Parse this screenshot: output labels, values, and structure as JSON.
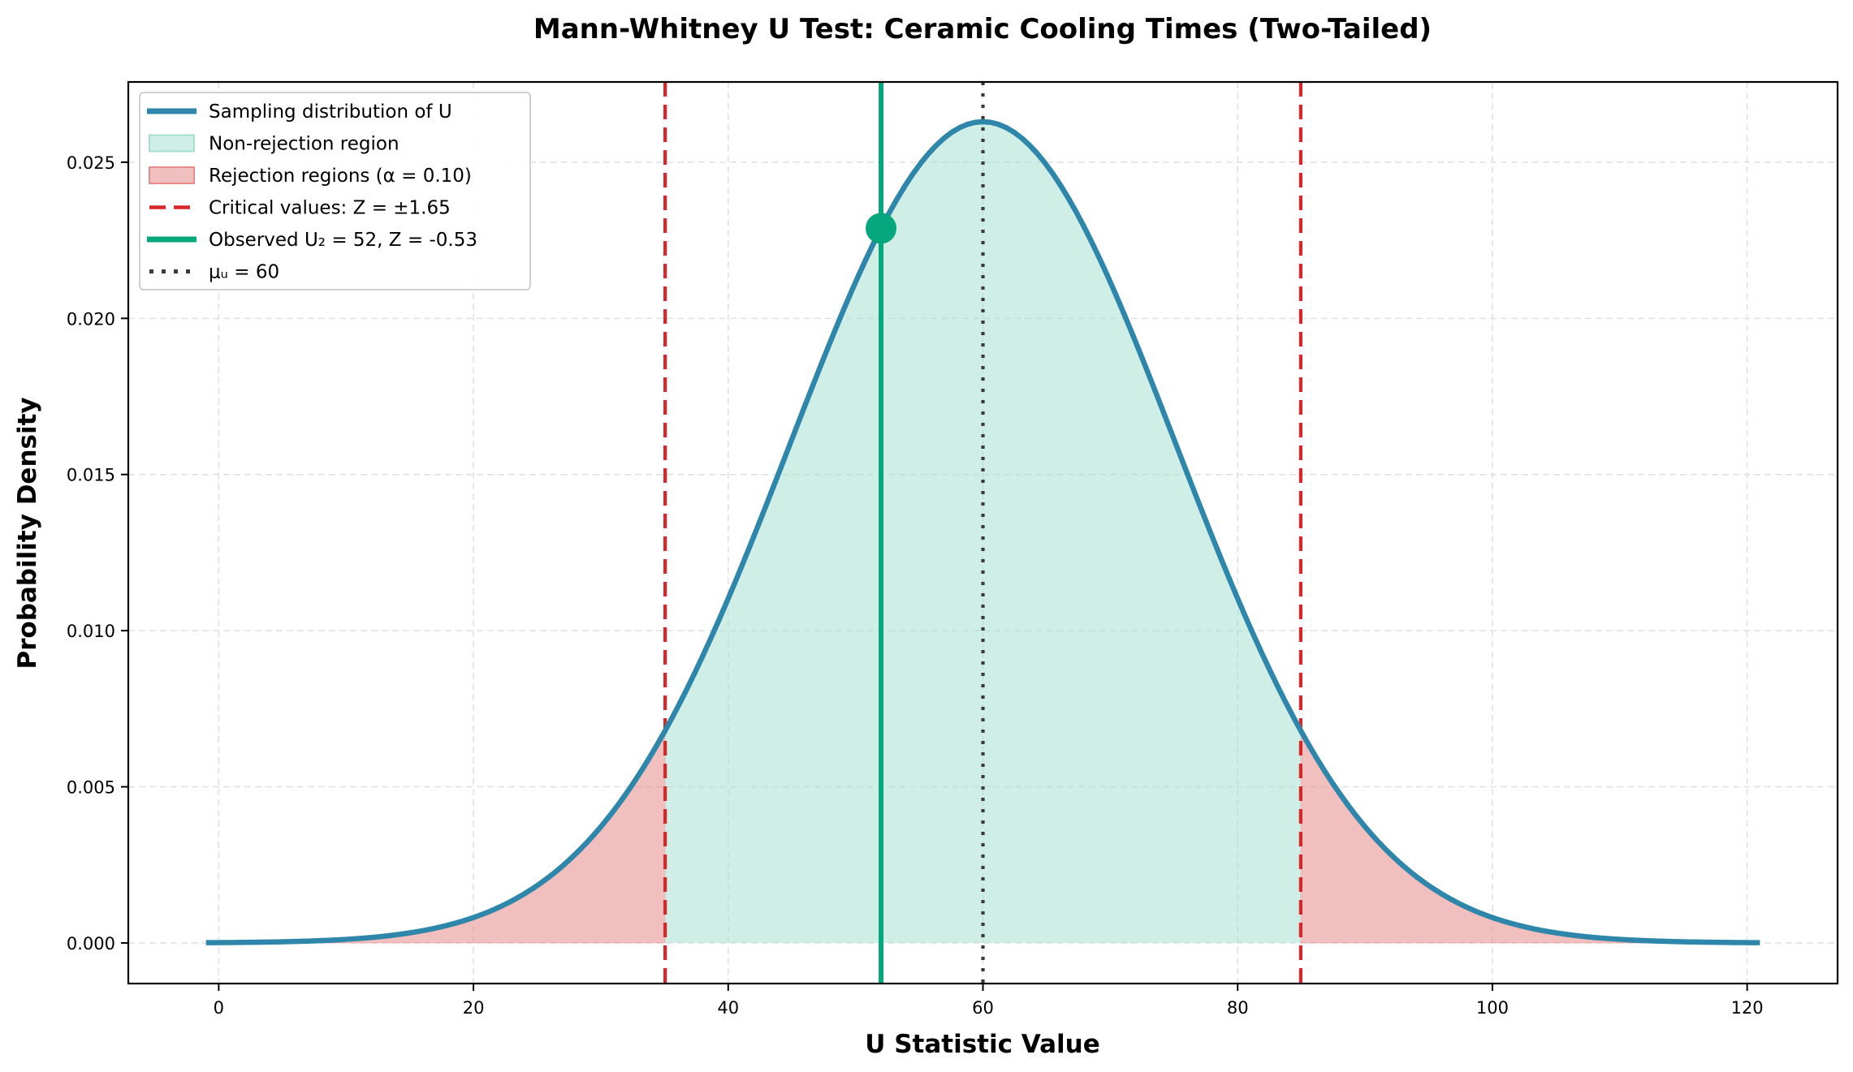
{
  "chart_data": {
    "type": "line",
    "title": "Mann-Whitney U Test: Ceramic Cooling Times (Two-Tailed)",
    "xlabel": "U Statistic Value",
    "ylabel": "Probability Density",
    "xlim": [
      -7.1,
      127.1
    ],
    "ylim": [
      -0.0013,
      0.02757
    ],
    "x_ticks": [
      0,
      20,
      40,
      60,
      80,
      100,
      120
    ],
    "x_tick_labels": [
      "0",
      "20",
      "40",
      "60",
      "80",
      "100",
      "120"
    ],
    "y_ticks": [
      0.0,
      0.005,
      0.01,
      0.015,
      0.02,
      0.025
    ],
    "y_tick_labels": [
      "0.000",
      "0.005",
      "0.010",
      "0.015",
      "0.020",
      "0.025"
    ],
    "grid": true,
    "legend_position": "top-left",
    "distribution": {
      "kind": "normal",
      "mean": 60,
      "sd": 15.17,
      "x_range": [
        -1,
        121
      ],
      "peak_density": 0.0263
    },
    "critical_values": [
      35.05,
      84.95
    ],
    "alpha": 0.1,
    "observed": {
      "u": 52,
      "z": -0.53,
      "density": 0.0229
    },
    "mean_line": 60,
    "colors": {
      "curve": "#2e86ab",
      "non_rejection_fill": "#a8e0cf",
      "rejection_fill": "#e88b8b",
      "critical": "#d62728",
      "observed": "#06a77d",
      "mean": "#3a3a3a",
      "grid": "#d9d9d9"
    },
    "legend": [
      {
        "label": "Sampling distribution of U",
        "kind": "line-curve"
      },
      {
        "label": "Non-rejection region",
        "kind": "patch-green"
      },
      {
        "label": "Rejection regions (α = 0.10)",
        "kind": "patch-red"
      },
      {
        "label": "Critical values: Z = ±1.65",
        "kind": "line-dashed"
      },
      {
        "label": "Observed U₂ = 52, Z = -0.53",
        "kind": "line-observed"
      },
      {
        "label": "μᵤ = 60",
        "kind": "line-dotted"
      }
    ]
  }
}
